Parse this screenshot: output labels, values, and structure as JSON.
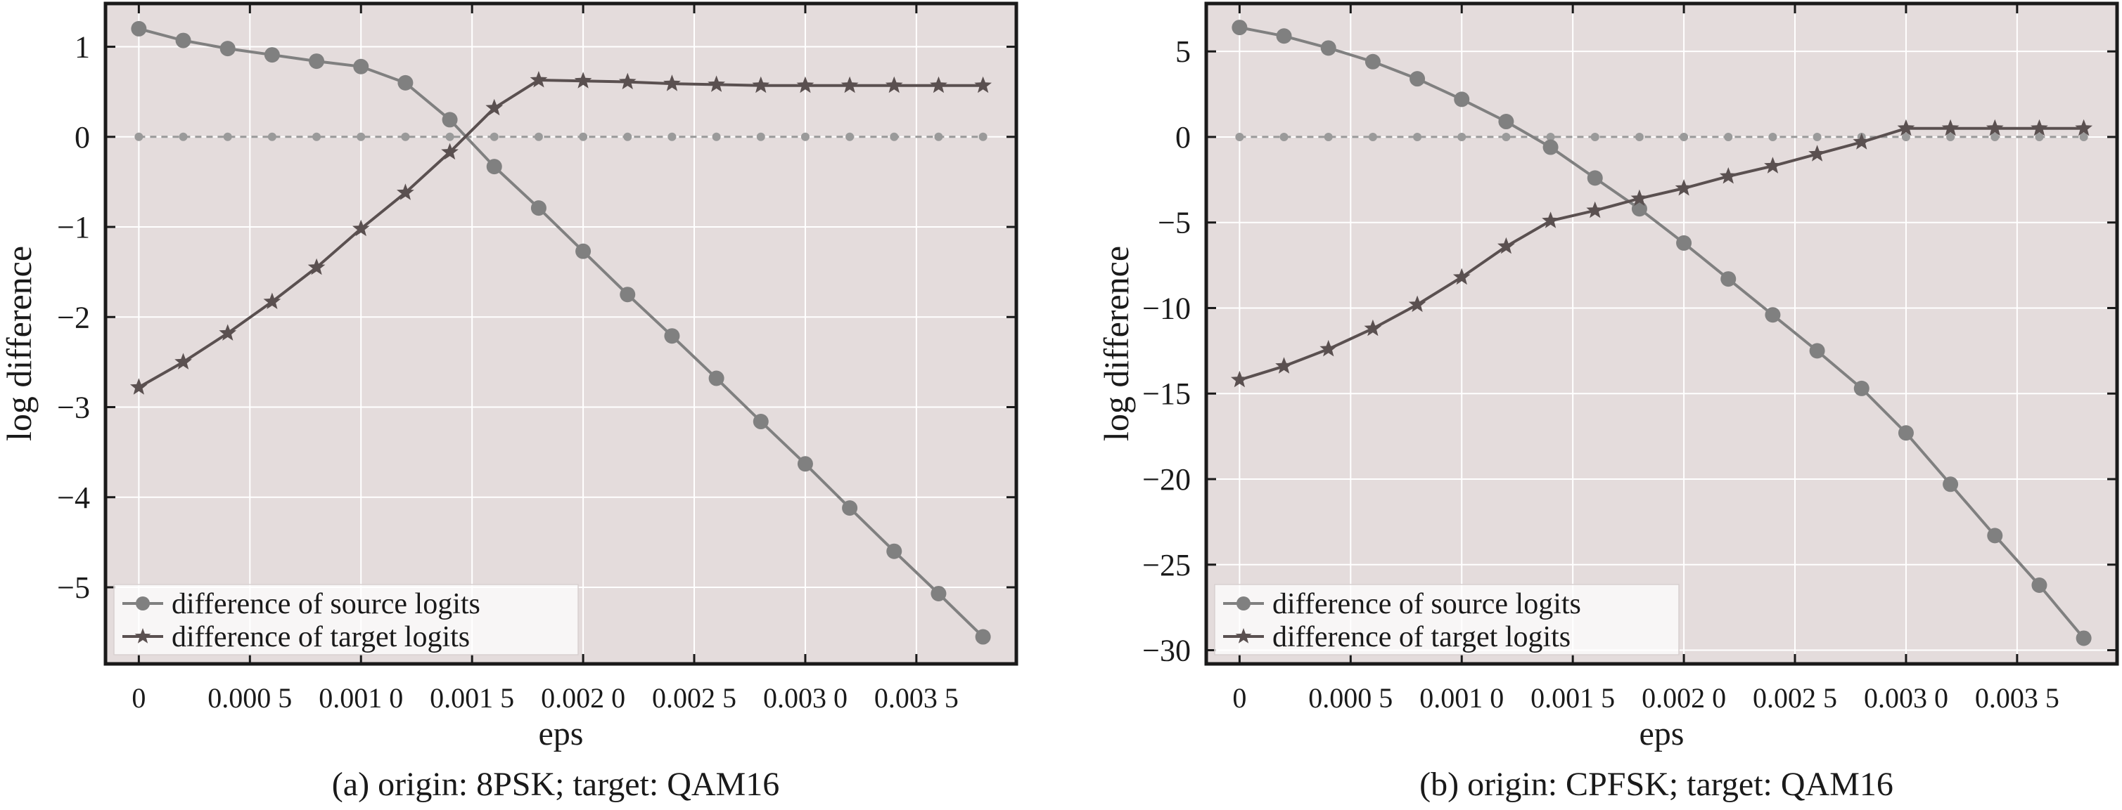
{
  "chart_data": [
    {
      "type": "line",
      "caption": "(a)  origin: 8PSK; target: QAM16",
      "xlabel": "eps",
      "ylabel": "log difference",
      "xlim": [
        -0.00015,
        0.00395
      ],
      "ylim": [
        -5.85,
        1.48
      ],
      "x_tick_values": [
        0,
        0.0005,
        0.001,
        0.0015,
        0.002,
        0.0025,
        0.003,
        0.0035
      ],
      "x_tick_labels": [
        "0",
        "0.000 5",
        "0.001 0",
        "0.001 5",
        "0.002 0",
        "0.002 5",
        "0.003 0",
        "0.003 5"
      ],
      "y_ticks": [
        1,
        0,
        -1,
        -2,
        -3,
        -4,
        -5
      ],
      "y_tick_labels": [
        "1",
        "0",
        "−1",
        "−2",
        "−3",
        "−4",
        "−5"
      ],
      "grid": true,
      "legend_position": "bottom-left",
      "x": [
        0,
        0.0002,
        0.0004,
        0.0006,
        0.0008,
        0.001,
        0.0012,
        0.0014,
        0.0016,
        0.0018,
        0.002,
        0.0022,
        0.0024,
        0.0026,
        0.0028,
        0.003,
        0.0032,
        0.0034,
        0.0036,
        0.0038
      ],
      "series": [
        {
          "name": "difference of source logits",
          "marker": "circle",
          "color": "#808080",
          "values": [
            1.2,
            1.07,
            0.98,
            0.91,
            0.84,
            0.78,
            0.6,
            0.19,
            -0.33,
            -0.79,
            -1.27,
            -1.75,
            -2.21,
            -2.68,
            -3.16,
            -3.63,
            -4.12,
            -4.6,
            -5.07,
            -5.55
          ]
        },
        {
          "name": "difference of target logits",
          "marker": "star",
          "color": "#5a5050",
          "values": [
            -2.78,
            -2.5,
            -2.18,
            -1.83,
            -1.45,
            -1.02,
            -0.62,
            -0.17,
            0.32,
            0.63,
            0.62,
            0.61,
            0.59,
            0.58,
            0.57,
            0.57,
            0.57,
            0.57,
            0.57,
            0.57
          ]
        },
        {
          "name": "",
          "marker": "small-dot",
          "color": "#9a9a9a",
          "dashed": true,
          "values": [
            0,
            0,
            0,
            0,
            0,
            0,
            0,
            0,
            0,
            0,
            0,
            0,
            0,
            0,
            0,
            0,
            0,
            0,
            0,
            0
          ]
        }
      ]
    },
    {
      "type": "line",
      "caption": "(b)  origin: CPFSK; target: QAM16",
      "xlabel": "eps",
      "ylabel": "log difference",
      "xlim": [
        -0.00015,
        0.00395
      ],
      "ylim": [
        -30.8,
        7.8
      ],
      "x_tick_values": [
        0,
        0.0005,
        0.001,
        0.0015,
        0.002,
        0.0025,
        0.003,
        0.0035
      ],
      "x_tick_labels": [
        "0",
        "0.000 5",
        "0.001 0",
        "0.001 5",
        "0.002 0",
        "0.002 5",
        "0.003 0",
        "0.003 5"
      ],
      "y_ticks": [
        5,
        0,
        -5,
        -10,
        -15,
        -20,
        -25,
        -30
      ],
      "y_tick_labels": [
        "5",
        "0",
        "−5",
        "−10",
        "−15",
        "−20",
        "−25",
        "−30"
      ],
      "grid": true,
      "legend_position": "bottom-left",
      "x": [
        0,
        0.0002,
        0.0004,
        0.0006,
        0.0008,
        0.001,
        0.0012,
        0.0014,
        0.0016,
        0.0018,
        0.002,
        0.0022,
        0.0024,
        0.0026,
        0.0028,
        0.003,
        0.0032,
        0.0034,
        0.0036,
        0.0038
      ],
      "series": [
        {
          "name": "difference of source logits",
          "marker": "circle",
          "color": "#808080",
          "values": [
            6.4,
            5.9,
            5.2,
            4.4,
            3.4,
            2.2,
            0.9,
            -0.6,
            -2.4,
            -4.2,
            -6.2,
            -8.3,
            -10.4,
            -12.5,
            -14.7,
            -17.3,
            -20.3,
            -23.3,
            -26.2,
            -29.3
          ]
        },
        {
          "name": "difference of target logits",
          "marker": "star",
          "color": "#5a5050",
          "values": [
            -14.2,
            -13.4,
            -12.4,
            -11.2,
            -9.8,
            -8.2,
            -6.4,
            -4.9,
            -4.3,
            -3.6,
            -3.0,
            -2.3,
            -1.7,
            -1.0,
            -0.3,
            0.5,
            0.5,
            0.5,
            0.5,
            0.5
          ]
        },
        {
          "name": "",
          "marker": "small-dot",
          "color": "#9a9a9a",
          "dashed": true,
          "values": [
            0,
            0,
            0,
            0,
            0,
            0,
            0,
            0,
            0,
            0,
            0,
            0,
            0,
            0,
            0,
            0,
            0,
            0,
            0,
            0
          ]
        }
      ]
    }
  ]
}
